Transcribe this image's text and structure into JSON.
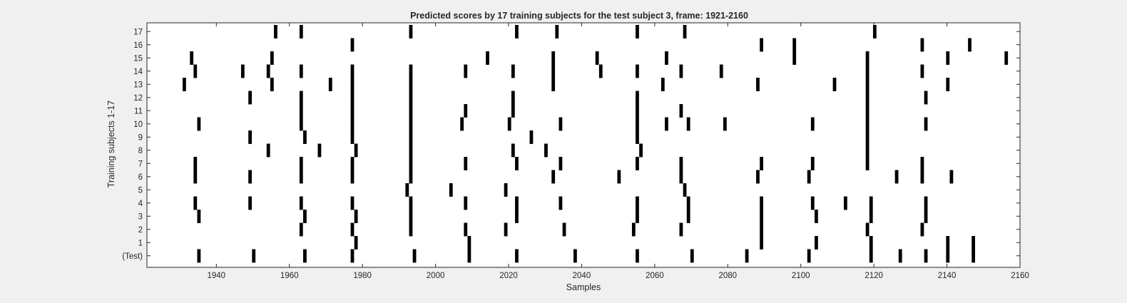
{
  "chart_data": {
    "type": "heatmap",
    "title": "Predicted scores by 17 training subjects for the test subject 3, frame: 1921-2160",
    "xlabel": "Samples",
    "ylabel": "Training subjects 1-17",
    "xlim": [
      1921,
      2160
    ],
    "xticks": [
      1940,
      1960,
      1980,
      2000,
      2020,
      2040,
      2060,
      2080,
      2100,
      2120,
      2140,
      2160
    ],
    "yticklabels": [
      "(Test)",
      "1",
      "2",
      "3",
      "4",
      "5",
      "6",
      "7",
      "8",
      "9",
      "10",
      "11",
      "12",
      "13",
      "14",
      "15",
      "16",
      "17"
    ],
    "grid": false,
    "colors": {
      "background": "#ffffff",
      "mark": "#000000",
      "figure": "#f0f0f0"
    },
    "rows": [
      {
        "label": "(Test)",
        "x": [
          1935,
          1950,
          1964,
          1977,
          1994,
          2009,
          2022,
          2038,
          2055,
          2070,
          2085,
          2102,
          2119,
          2127,
          2134,
          2140,
          2147
        ]
      },
      {
        "label": "1",
        "x": [
          1978,
          2009,
          2089,
          2104,
          2119,
          2140,
          2147
        ]
      },
      {
        "label": "2",
        "x": [
          1963,
          1977,
          1993,
          2008,
          2019,
          2035,
          2054,
          2067,
          2089,
          2118,
          2133
        ]
      },
      {
        "label": "3",
        "x": [
          1935,
          1964,
          1978,
          1993,
          2022,
          2055,
          2069,
          2089,
          2104,
          2119,
          2134
        ]
      },
      {
        "label": "4",
        "x": [
          1934,
          1949,
          1963,
          1977,
          1993,
          2008,
          2022,
          2034,
          2055,
          2069,
          2089,
          2103,
          2112,
          2119,
          2134
        ]
      },
      {
        "label": "5",
        "x": [
          1992,
          2004,
          2019,
          2068
        ]
      },
      {
        "label": "6",
        "x": [
          1934,
          1949,
          1963,
          1977,
          1993,
          2032,
          2050,
          2067,
          2088,
          2102,
          2126,
          2133,
          2141
        ]
      },
      {
        "label": "7",
        "x": [
          1934,
          1963,
          1977,
          1993,
          2008,
          2022,
          2034,
          2055,
          2067,
          2089,
          2103,
          2118,
          2133
        ]
      },
      {
        "label": "8",
        "x": [
          1954,
          1968,
          1978,
          1993,
          2021,
          2030,
          2056,
          2118
        ]
      },
      {
        "label": "9",
        "x": [
          1949,
          1964,
          1977,
          1993,
          2026,
          2055,
          2118
        ]
      },
      {
        "label": "10",
        "x": [
          1935,
          1963,
          1977,
          1993,
          2007,
          2020,
          2034,
          2055,
          2063,
          2069,
          2079,
          2103,
          2118,
          2134
        ]
      },
      {
        "label": "11",
        "x": [
          1963,
          1977,
          1993,
          2008,
          2021,
          2055,
          2067,
          2118
        ]
      },
      {
        "label": "12",
        "x": [
          1949,
          1963,
          1977,
          1993,
          2021,
          2055,
          2118,
          2134
        ]
      },
      {
        "label": "13",
        "x": [
          1931,
          1955,
          1971,
          1977,
          1993,
          2032,
          2062,
          2088,
          2109,
          2118,
          2140
        ]
      },
      {
        "label": "14",
        "x": [
          1934,
          1947,
          1954,
          1963,
          1977,
          1993,
          2008,
          2021,
          2032,
          2045,
          2055,
          2067,
          2078,
          2118,
          2133
        ]
      },
      {
        "label": "15",
        "x": [
          1933,
          1955,
          2014,
          2032,
          2044,
          2063,
          2098,
          2118,
          2140,
          2156
        ]
      },
      {
        "label": "16",
        "x": [
          1977,
          2089,
          2098,
          2133,
          2146
        ]
      },
      {
        "label": "17",
        "x": [
          1956,
          1963,
          1993,
          2022,
          2033,
          2055,
          2068,
          2120
        ]
      }
    ]
  }
}
